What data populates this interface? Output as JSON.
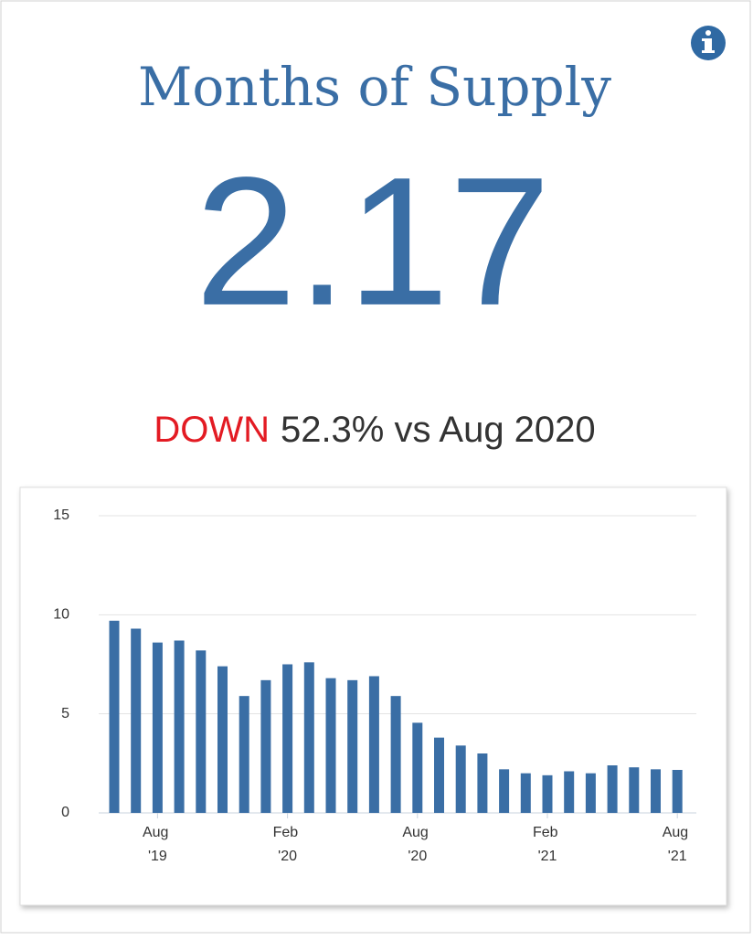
{
  "card": {
    "title": "Months of Supply",
    "value": "2.17",
    "change_direction": "DOWN",
    "change_text": "52.3% vs Aug 2020"
  },
  "chart_data": {
    "type": "bar",
    "categories": [
      null,
      null,
      "Aug '19",
      null,
      null,
      null,
      null,
      null,
      "Feb '20",
      null,
      null,
      null,
      null,
      null,
      "Aug '20",
      null,
      null,
      null,
      null,
      null,
      "Feb '21",
      null,
      null,
      null,
      null,
      null,
      "Aug '21"
    ],
    "values": [
      9.7,
      9.3,
      8.6,
      8.7,
      8.2,
      7.4,
      5.9,
      6.7,
      7.5,
      7.6,
      6.8,
      6.7,
      6.9,
      5.9,
      4.55,
      3.8,
      3.4,
      3.0,
      2.2,
      2.0,
      1.9,
      2.1,
      2.0,
      2.4,
      2.3,
      2.2,
      2.17
    ],
    "color": "#3a6ea5",
    "ylim": [
      0,
      15
    ],
    "yticks": [
      0,
      5,
      10,
      15
    ],
    "grid": true
  }
}
